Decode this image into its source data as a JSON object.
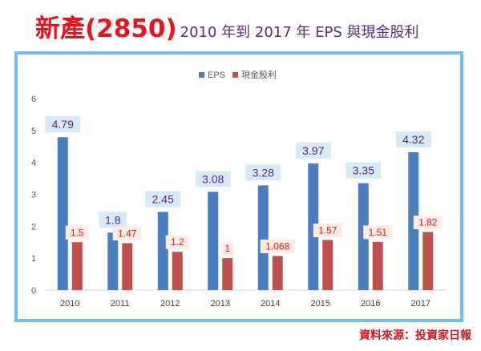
{
  "header": {
    "title_main": "新產(2850)",
    "title_sub": "2010 年到 2017 年 EPS 與現金股利"
  },
  "source": "資料來源：投資家日報",
  "colors": {
    "eps": "#4a7ebf",
    "dividend": "#c0504d",
    "eps_label_bg": "#d6eaf8",
    "eps_label_text": "#5a2a8a",
    "div_label_bg": "#fdece4",
    "div_label_text": "#e8141d"
  },
  "chart_data": {
    "type": "bar",
    "title": "",
    "xlabel": "",
    "ylabel": "",
    "ylim": [
      0,
      6
    ],
    "yticks": [
      "0",
      "1",
      "2",
      "3",
      "4",
      "5",
      "6"
    ],
    "grid": false,
    "legend_position": "top-center",
    "categories": [
      "2010",
      "2011",
      "2012",
      "2013",
      "2014",
      "2015",
      "2016",
      "2017"
    ],
    "series": [
      {
        "name": "EPS",
        "values": [
          4.79,
          1.8,
          2.45,
          3.08,
          3.28,
          3.97,
          3.35,
          4.32
        ],
        "labels": [
          "4.79",
          "1.8",
          "2.45",
          "3.08",
          "3.28",
          "3.97",
          "3.35",
          "4.32"
        ]
      },
      {
        "name": "現金股利",
        "values": [
          1.5,
          1.47,
          1.2,
          1,
          1.068,
          1.57,
          1.51,
          1.82
        ],
        "labels": [
          "1.5",
          "1.47",
          "1.2",
          "1",
          "1.068",
          "1.57",
          "1.51",
          "1.82"
        ]
      }
    ]
  }
}
